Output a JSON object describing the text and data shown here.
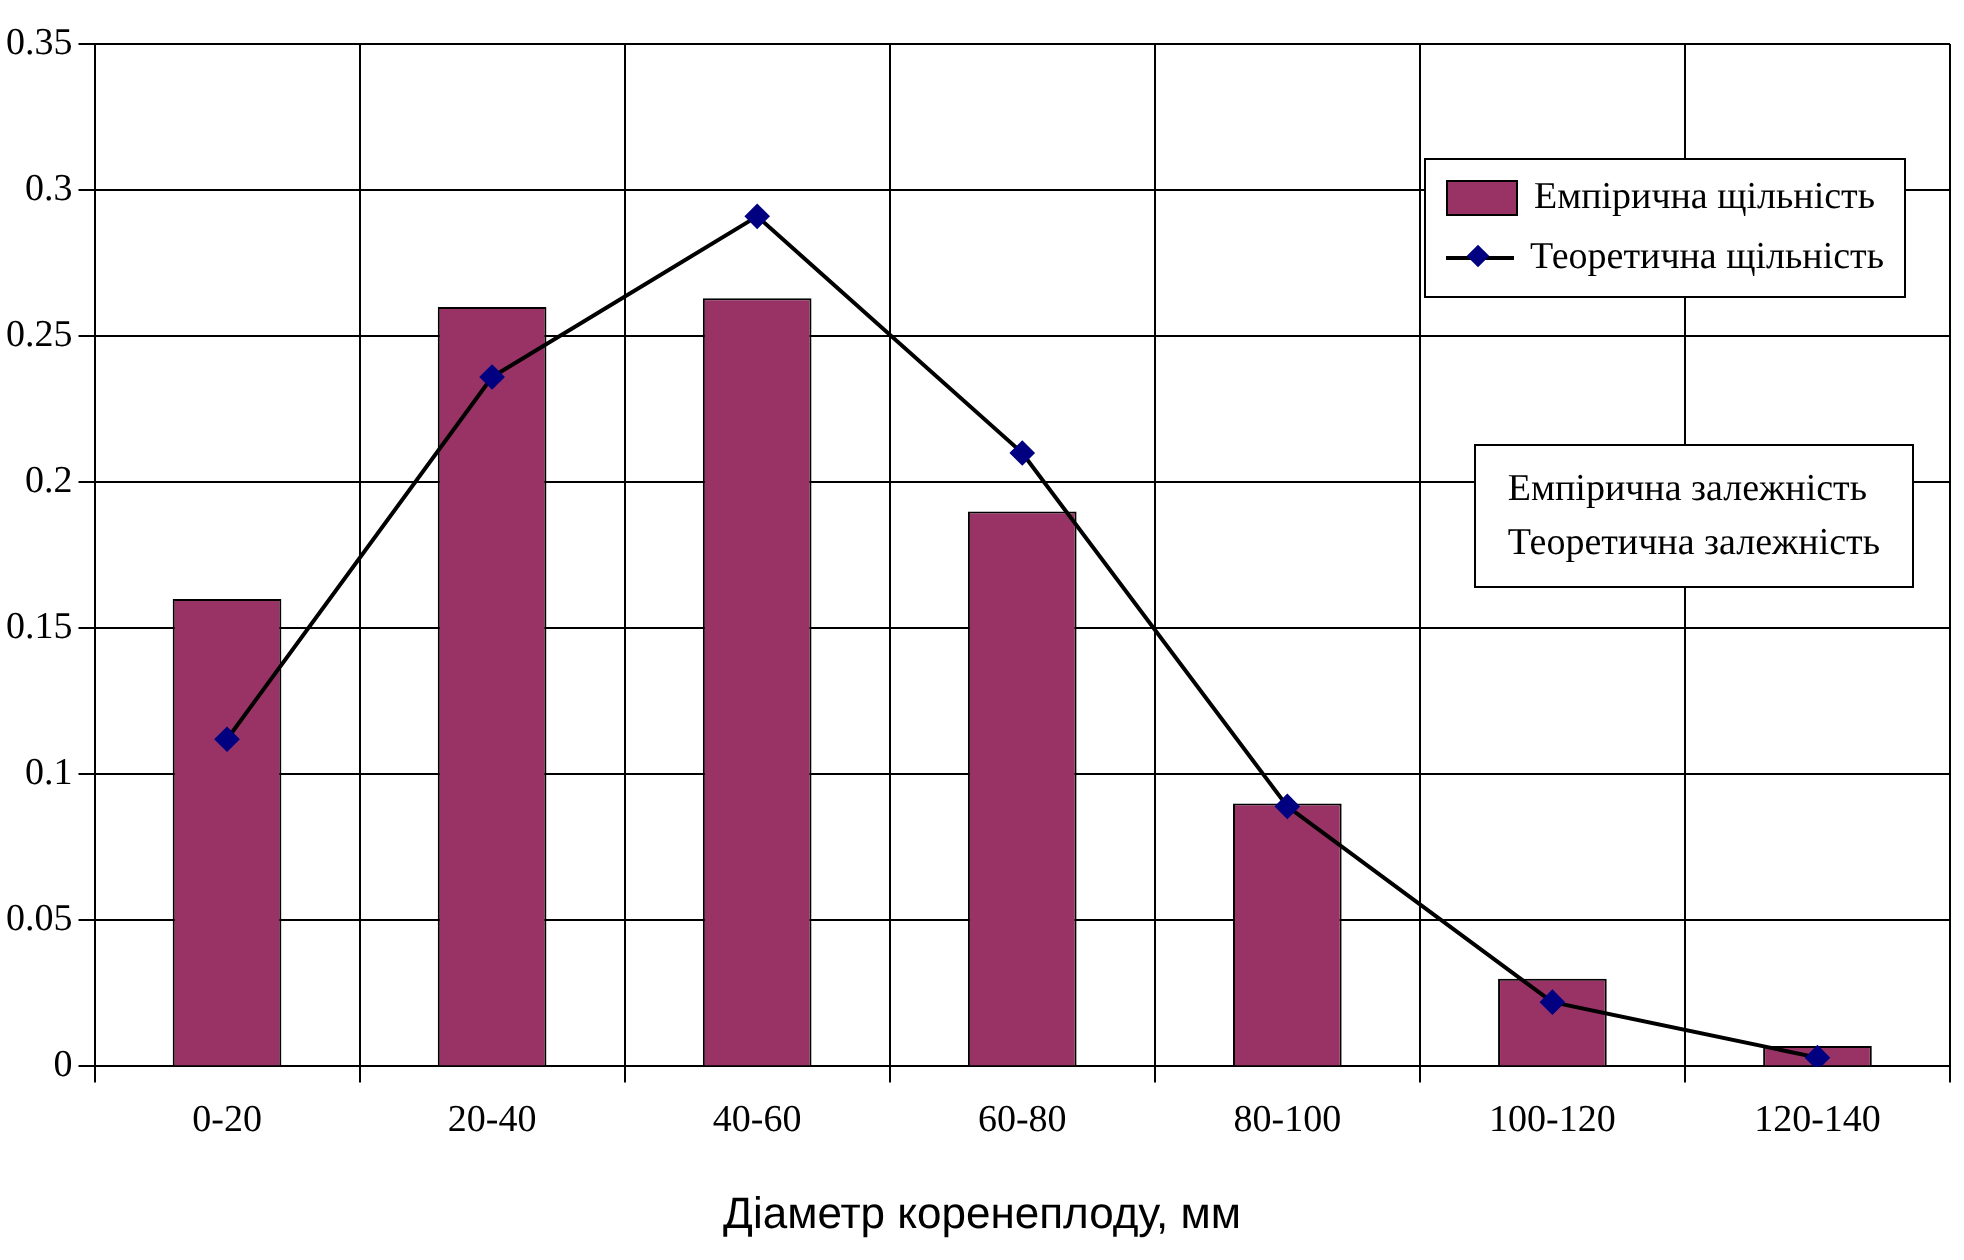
{
  "chart_data": {
    "type": "bar",
    "xlabel": "Діаметр коренеплоду, мм",
    "categories": [
      "0-20",
      "20-40",
      "40-60",
      "60-80",
      "80-100",
      "100-120",
      "120-140"
    ],
    "series": [
      {
        "name": "Емпірична щільність",
        "color": "#993366",
        "values": [
          0.16,
          0.26,
          0.263,
          0.19,
          0.09,
          0.03,
          0.007
        ]
      },
      {
        "name": "Теоретична щільність",
        "type": "line",
        "color": "#000080",
        "values": [
          0.112,
          0.236,
          0.291,
          0.21,
          0.089,
          0.022,
          0.003
        ]
      }
    ],
    "ylim": [
      0,
      0.35
    ],
    "yticks": [
      0,
      0.05,
      0.1,
      0.15,
      0.2,
      0.25,
      0.3,
      0.35
    ],
    "grid": true,
    "legend": "top right",
    "marker": "diamond",
    "line_style": "solid",
    "annotations": [
      "Емпірична залежність\nТеоретична залежність"
    ]
  }
}
